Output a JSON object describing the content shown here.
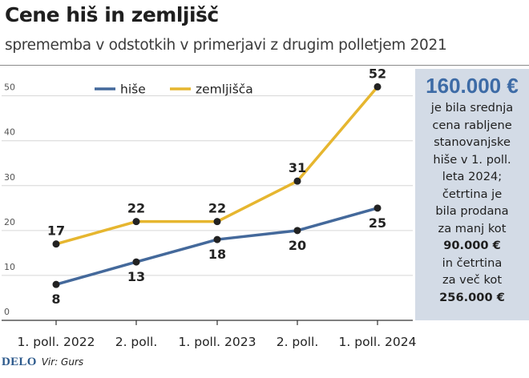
{
  "header": {
    "title": "Cene hiš in zemljišč",
    "subtitle": "sprememba v odstotkih v primerjavi z drugim polletjem 2021"
  },
  "chart_data": {
    "type": "line",
    "title": "Cene hiš in zemljišč",
    "categories": [
      "1. poll. 2022",
      "2. poll.",
      "1. poll. 2023",
      "2. poll.",
      "1. poll. 2024"
    ],
    "yticks": [
      0,
      10,
      20,
      30,
      40,
      50
    ],
    "ylim": [
      0,
      56
    ],
    "series": [
      {
        "name": "hiše",
        "color": "#44699b",
        "values": [
          8,
          13,
          18,
          20,
          25
        ],
        "label_pos": [
          "below",
          "below",
          "below",
          "below",
          "below"
        ]
      },
      {
        "name": "zemljišča",
        "color": "#e6b62f",
        "values": [
          17,
          22,
          22,
          31,
          52
        ],
        "label_pos": [
          "above",
          "above",
          "above",
          "above",
          "above"
        ]
      }
    ],
    "legend_position": "top-left",
    "grid": "horizontal"
  },
  "info_box": {
    "big_value": "160.000 €",
    "line1": "je bila srednja",
    "line2": "cena rabljene",
    "line3": "stanovanjske",
    "line4": "hiše v 1. poll.",
    "line5": "leta 2024;",
    "line6": "četrtina je",
    "line7": "bila prodana",
    "line8": "za manj kot",
    "value2": "90.000 €",
    "line9": "in četrtina",
    "line10": "za več kot",
    "value3": "256.000 €"
  },
  "footer": {
    "logo": "DELO",
    "source": "Vir: Gurs"
  }
}
